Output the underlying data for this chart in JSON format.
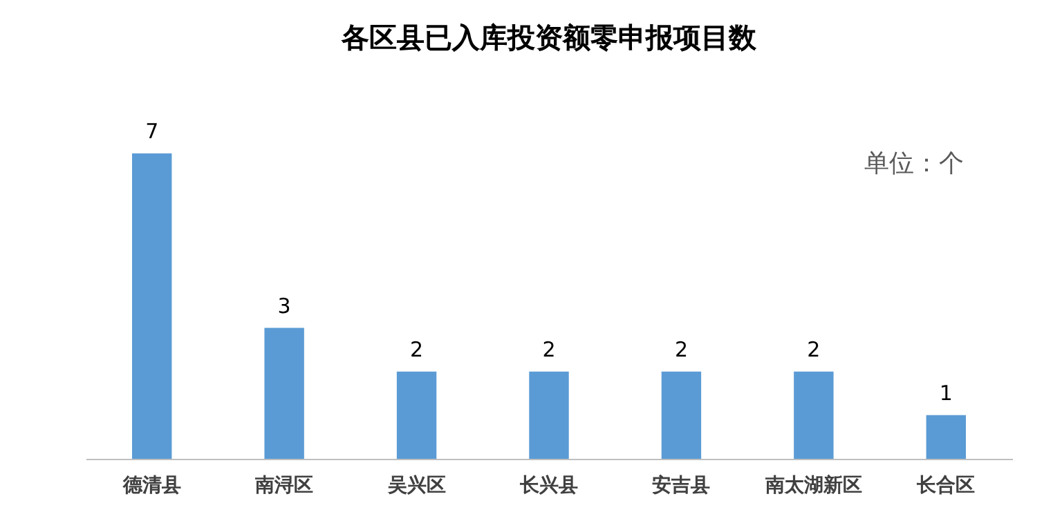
{
  "chart_data": {
    "type": "bar",
    "title": "各区县已入库投资额零申报项目数",
    "categories": [
      "德清县",
      "南浔区",
      "吴兴区",
      "长兴县",
      "安吉县",
      "南太湖新区",
      "长合区"
    ],
    "values": [
      7,
      3,
      2,
      2,
      2,
      2,
      1
    ],
    "color": "#5b9bd5",
    "data_labels": true,
    "tick_labels": "x",
    "grid": false,
    "annotations": [
      "单位：个"
    ]
  }
}
